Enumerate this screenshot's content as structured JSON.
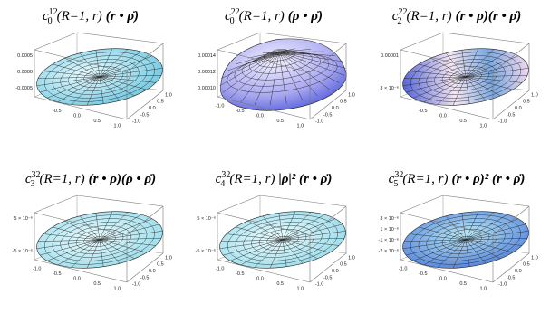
{
  "panels": [
    {
      "title": {
        "symbol": "c",
        "sub": "0",
        "sup": "12",
        "args": "(R=1, r)",
        "expr": "(r • ρ̈)"
      },
      "z_ticks": [
        "0.0005",
        "0.0000",
        "-0.0005"
      ],
      "x_ticks": [
        "-0.5",
        "0.0",
        "0.5",
        "1.0"
      ],
      "y_ticks": [
        "1.0",
        "0.5",
        "0.0",
        "-0.5",
        "-1.0"
      ]
    },
    {
      "title": {
        "symbol": "c",
        "sub": "0",
        "sup": "22",
        "args": "(R=1, r)",
        "expr": "(ρ • ρ̈)"
      },
      "z_ticks": [
        "0.00014",
        "0.00012",
        "0.00010"
      ],
      "x_ticks": [
        "-1.0",
        "-0.5",
        "0.0",
        "0.5",
        "1.0"
      ],
      "y_ticks": [
        "1.0",
        "0.5",
        "0.0",
        "-0.5",
        "-1.0"
      ]
    },
    {
      "title": {
        "symbol": "c",
        "sub": "2",
        "sup": "22",
        "args": "(R=1, r)",
        "expr": "(r • ρ)(r • ρ̈)"
      },
      "z_ticks": [
        "0.00001",
        "3 × 10⁻⁶"
      ],
      "x_ticks": [
        "-0.5",
        "0.0",
        "0.5",
        "1.0"
      ],
      "y_ticks": [
        "1.0",
        "0.5",
        "0.0",
        "-0.5",
        "-1.0"
      ]
    },
    {
      "title": {
        "symbol": "c",
        "sub": "3",
        "sup": "32",
        "args": "(R=1, r)",
        "expr": "(r • ρ)(ρ • ρ̈)"
      },
      "z_ticks": [
        "5 × 10⁻⁶",
        "-5 × 10⁻⁶"
      ],
      "x_ticks": [
        "-1.0",
        "-0.5",
        "0.0",
        "0.5",
        "1.0"
      ],
      "y_ticks": [
        "1.0",
        "0.5",
        "0.0",
        "-0.5",
        "-1.0"
      ]
    },
    {
      "title": {
        "symbol": "c",
        "sub": "4",
        "sup": "32",
        "args": "(R=1, r)",
        "expr": "|ρ|² (r • ρ̈)"
      },
      "z_ticks": [
        "5 × 10⁻⁶",
        "-5 × 10⁻⁶"
      ],
      "x_ticks": [
        "-1.0",
        "-0.5",
        "0.0",
        "0.5",
        "1.0"
      ],
      "y_ticks": [
        "1.0",
        "0.5",
        "0.0",
        "-0.5",
        "-1.0"
      ]
    },
    {
      "title": {
        "symbol": "c",
        "sub": "5",
        "sup": "32",
        "args": "(R=1, r)",
        "expr": "(r • ρ)² (r • ρ̈)"
      },
      "z_ticks": [
        "3 × 10⁻⁶",
        "1 × 10⁻⁶",
        "-1 × 10⁻⁶",
        "-2 × 10⁻⁶"
      ],
      "x_ticks": [
        "-1.0",
        "-0.5",
        "0.0",
        "0.5",
        "1.0"
      ],
      "y_ticks": [
        "1.0",
        "0.5",
        "0.0",
        "-0.5",
        "-1.0"
      ]
    }
  ]
}
